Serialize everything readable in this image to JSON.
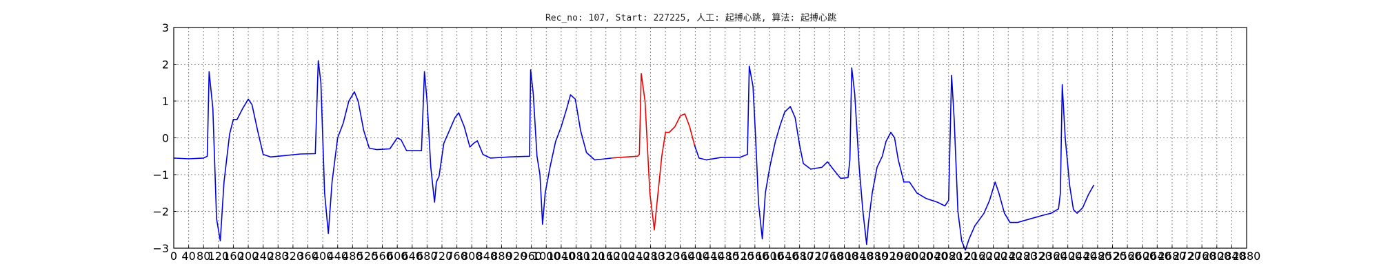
{
  "chart_data": {
    "type": "line",
    "title": "Rec_no: 107, Start: 227225, 人工: 起搏心跳, 算法: 起搏心跳",
    "xlabel": "",
    "ylabel": "",
    "xlim": [
      0,
      2880
    ],
    "ylim": [
      -3,
      3
    ],
    "grid": true,
    "x_tick_values": [
      0,
      40,
      80,
      120,
      160,
      200,
      240,
      280,
      320,
      360,
      400,
      440,
      480,
      520,
      560,
      600,
      640,
      680,
      720,
      760,
      800,
      840,
      880,
      920,
      960,
      1000,
      1040,
      1080,
      1120,
      1160,
      1200,
      1240,
      1280,
      1320,
      1360,
      1400,
      1440,
      1480,
      1520,
      1560,
      1600,
      1640,
      1680,
      1720,
      1760,
      1800,
      1840,
      1880,
      1920,
      1960,
      2000,
      2040,
      2080,
      2120,
      2160,
      2200,
      2240,
      2280,
      2320,
      2360,
      2400,
      2440,
      2480,
      2520,
      2560,
      2600,
      2640,
      2680,
      2720,
      2760,
      2800,
      2840,
      2880
    ],
    "x_tick_labels": [
      "0",
      "40",
      "80",
      "120",
      "160",
      "200",
      "240",
      "280",
      "320",
      "360",
      "400",
      "440",
      "480",
      "520",
      "560",
      "600",
      "640",
      "680",
      "720",
      "760",
      "800",
      "840",
      "880",
      "920",
      "960",
      "1000",
      "1040",
      "1080",
      "1120",
      "1160",
      "1200",
      "1240",
      "1280",
      "1320",
      "1360",
      "1400",
      "1440",
      "1480",
      "1520",
      "1560",
      "1600",
      "1640",
      "1680",
      "1720",
      "1760",
      "1800",
      "1840",
      "1880",
      "1920",
      "1960",
      "2000",
      "2040",
      "2080",
      "2120",
      "2160",
      "2200",
      "2240",
      "2280",
      "2320",
      "2360",
      "2400",
      "2440",
      "2480",
      "2520",
      "2560",
      "2600",
      "2640",
      "2680",
      "2720",
      "2760",
      "2800",
      "2840",
      "2880"
    ],
    "y_tick_values": [
      3,
      2,
      1,
      0,
      -1,
      -2,
      -3
    ],
    "y_tick_labels": [
      "3",
      "2",
      "1",
      "0",
      "−1",
      "−2",
      "−3"
    ],
    "series": [
      {
        "color": "#0000dd",
        "points": [
          [
            0,
            -0.55
          ],
          [
            40,
            -0.57
          ],
          [
            80,
            -0.55
          ],
          [
            90,
            -0.5
          ],
          [
            95,
            1.8
          ],
          [
            105,
            0.8
          ],
          [
            115,
            -2.2
          ],
          [
            125,
            -2.8
          ],
          [
            135,
            -1.2
          ],
          [
            150,
            0.1
          ],
          [
            160,
            0.5
          ],
          [
            170,
            0.5
          ],
          [
            185,
            0.8
          ],
          [
            200,
            1.05
          ],
          [
            210,
            0.9
          ],
          [
            225,
            0.2
          ],
          [
            240,
            -0.45
          ],
          [
            260,
            -0.52
          ],
          [
            300,
            -0.48
          ],
          [
            340,
            -0.44
          ],
          [
            380,
            -0.43
          ],
          [
            388,
            2.1
          ],
          [
            395,
            1.5
          ],
          [
            405,
            -1.5
          ],
          [
            415,
            -2.6
          ],
          [
            425,
            -1.2
          ],
          [
            440,
            0
          ],
          [
            455,
            0.4
          ],
          [
            470,
            1.0
          ],
          [
            485,
            1.25
          ],
          [
            495,
            1.0
          ],
          [
            510,
            0.2
          ],
          [
            525,
            -0.28
          ],
          [
            545,
            -0.32
          ],
          [
            580,
            -0.3
          ],
          [
            600,
            0.0
          ],
          [
            610,
            -0.05
          ],
          [
            625,
            -0.35
          ],
          [
            665,
            -0.35
          ],
          [
            673,
            1.8
          ],
          [
            680,
            1.0
          ],
          [
            690,
            -0.8
          ],
          [
            700,
            -1.75
          ],
          [
            705,
            -1.2
          ],
          [
            712,
            -1.05
          ],
          [
            725,
            -0.15
          ],
          [
            740,
            0.2
          ],
          [
            755,
            0.55
          ],
          [
            765,
            0.68
          ],
          [
            780,
            0.3
          ],
          [
            795,
            -0.25
          ],
          [
            805,
            -0.15
          ],
          [
            815,
            -0.08
          ],
          [
            830,
            -0.45
          ],
          [
            850,
            -0.55
          ],
          [
            900,
            -0.52
          ],
          [
            955,
            -0.5
          ],
          [
            958,
            1.85
          ],
          [
            965,
            1.2
          ],
          [
            975,
            -0.5
          ],
          [
            983,
            -1.0
          ],
          [
            990,
            -2.35
          ],
          [
            997,
            -1.5
          ],
          [
            1010,
            -0.8
          ],
          [
            1025,
            -0.1
          ],
          [
            1040,
            0.3
          ],
          [
            1055,
            0.8
          ],
          [
            1065,
            1.17
          ],
          [
            1078,
            1.05
          ],
          [
            1092,
            0.2
          ],
          [
            1108,
            -0.4
          ],
          [
            1130,
            -0.6
          ],
          [
            1150,
            -0.58
          ],
          [
            1175,
            -0.55
          ]
        ]
      },
      {
        "color": "#ee0000",
        "points": [
          [
            1175,
            -0.55
          ],
          [
            1215,
            -0.52
          ],
          [
            1245,
            -0.5
          ],
          [
            1250,
            -0.45
          ],
          [
            1255,
            1.75
          ],
          [
            1265,
            1.0
          ],
          [
            1278,
            -1.5
          ],
          [
            1290,
            -2.5
          ],
          [
            1297,
            -1.8
          ],
          [
            1310,
            -0.5
          ],
          [
            1320,
            0.15
          ],
          [
            1330,
            0.15
          ],
          [
            1345,
            0.3
          ],
          [
            1360,
            0.6
          ],
          [
            1372,
            0.65
          ],
          [
            1385,
            0.3
          ],
          [
            1398,
            -0.2
          ]
        ]
      },
      {
        "color": "#0000dd",
        "points": [
          [
            1398,
            -0.2
          ],
          [
            1410,
            -0.55
          ],
          [
            1430,
            -0.6
          ],
          [
            1470,
            -0.53
          ],
          [
            1520,
            -0.53
          ],
          [
            1540,
            -0.45
          ],
          [
            1545,
            1.95
          ],
          [
            1555,
            1.4
          ],
          [
            1562,
            0
          ],
          [
            1570,
            -1.8
          ],
          [
            1580,
            -2.75
          ],
          [
            1588,
            -1.5
          ],
          [
            1600,
            -0.8
          ],
          [
            1615,
            -0.1
          ],
          [
            1628,
            0.35
          ],
          [
            1640,
            0.7
          ],
          [
            1655,
            0.85
          ],
          [
            1668,
            0.55
          ],
          [
            1680,
            -0.2
          ],
          [
            1690,
            -0.7
          ],
          [
            1710,
            -0.85
          ],
          [
            1740,
            -0.8
          ],
          [
            1755,
            -0.65
          ],
          [
            1770,
            -0.85
          ],
          [
            1790,
            -1.1
          ],
          [
            1810,
            -1.08
          ],
          [
            1815,
            -0.6
          ],
          [
            1820,
            1.9
          ],
          [
            1828,
            1.2
          ],
          [
            1840,
            -0.8
          ],
          [
            1850,
            -2.0
          ],
          [
            1860,
            -2.9
          ],
          [
            1865,
            -2.3
          ],
          [
            1875,
            -1.5
          ],
          [
            1888,
            -0.8
          ],
          [
            1902,
            -0.5
          ],
          [
            1912,
            -0.1
          ],
          [
            1925,
            0.15
          ],
          [
            1935,
            0.0
          ],
          [
            1945,
            -0.6
          ],
          [
            1960,
            -1.2
          ],
          [
            1975,
            -1.2
          ],
          [
            1995,
            -1.5
          ],
          [
            2020,
            -1.65
          ],
          [
            2050,
            -1.75
          ],
          [
            2070,
            -1.85
          ],
          [
            2080,
            -1.7
          ],
          [
            2088,
            1.7
          ],
          [
            2095,
            0.5
          ],
          [
            2105,
            -2.0
          ],
          [
            2115,
            -2.8
          ],
          [
            2125,
            -3.05
          ],
          [
            2135,
            -2.75
          ],
          [
            2150,
            -2.4
          ],
          [
            2175,
            -2.05
          ],
          [
            2190,
            -1.7
          ],
          [
            2205,
            -1.2
          ],
          [
            2215,
            -1.5
          ],
          [
            2230,
            -2.05
          ],
          [
            2245,
            -2.3
          ],
          [
            2265,
            -2.3
          ],
          [
            2300,
            -2.2
          ],
          [
            2335,
            -2.1
          ],
          [
            2355,
            -2.05
          ],
          [
            2375,
            -1.93
          ],
          [
            2380,
            -1.5
          ],
          [
            2385,
            1.45
          ],
          [
            2393,
            0
          ],
          [
            2405,
            -1.3
          ],
          [
            2415,
            -1.95
          ],
          [
            2425,
            -2.05
          ],
          [
            2440,
            -1.9
          ],
          [
            2455,
            -1.55
          ],
          [
            2470,
            -1.28
          ]
        ]
      }
    ]
  }
}
